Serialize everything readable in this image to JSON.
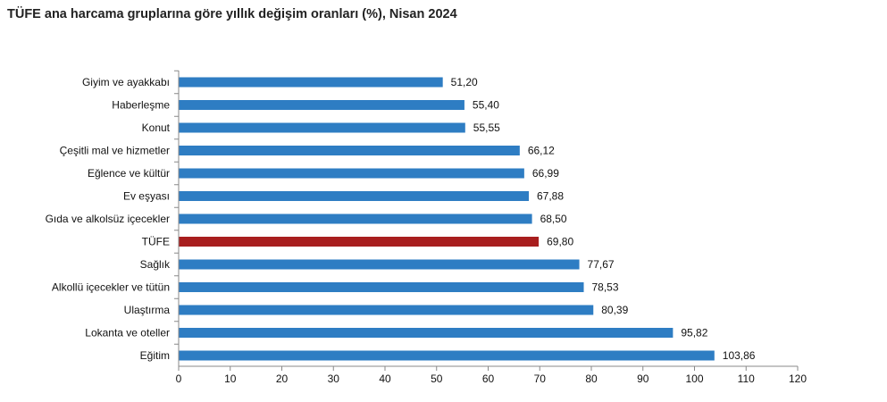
{
  "chart_data": {
    "type": "bar",
    "orientation": "horizontal",
    "title": "TÜFE ana harcama gruplarına göre yıllık değişim oranları (%), Nisan 2024",
    "xlabel": "",
    "ylabel": "",
    "xlim": [
      0,
      120
    ],
    "x_ticks": [
      0,
      10,
      20,
      30,
      40,
      50,
      60,
      70,
      80,
      90,
      100,
      110,
      120
    ],
    "grid": false,
    "legend": "none",
    "categories": [
      "Giyim ve ayakkabı",
      "Haberleşme",
      "Konut",
      "Çeşitli mal ve hizmetler",
      "Eğlence ve kültür",
      "Ev eşyası",
      "Gıda ve alkolsüz içecekler",
      "TÜFE",
      "Sağlık",
      "Alkollü içecekler ve tütün",
      "Ulaştırma",
      "Lokanta ve oteller",
      "Eğitim"
    ],
    "values": [
      51.2,
      55.4,
      55.55,
      66.12,
      66.99,
      67.88,
      68.5,
      69.8,
      77.67,
      78.53,
      80.39,
      95.82,
      103.86
    ],
    "value_labels": [
      "51,20",
      "55,40",
      "55,55",
      "66,12",
      "66,99",
      "67,88",
      "68,50",
      "69,80",
      "77,67",
      "78,53",
      "80,39",
      "95,82",
      "103,86"
    ],
    "bar_color": "#2E7DC3",
    "highlight_category": "TÜFE",
    "highlight_color": "#A81E1E"
  }
}
